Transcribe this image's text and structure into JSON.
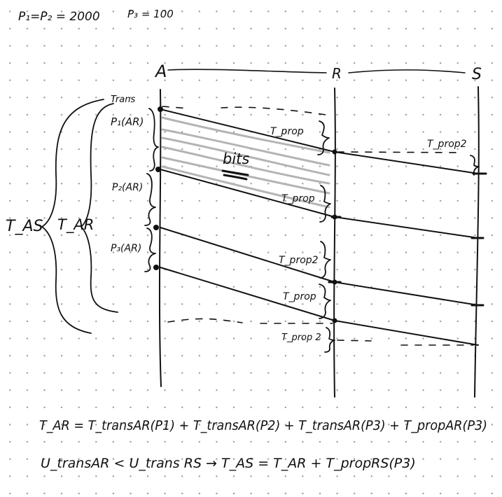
{
  "header": {
    "p1p2": "P₁=P₂ = 2000",
    "p3": "P₃ = 100"
  },
  "nodes": {
    "a": "A",
    "r": "R",
    "s": "S"
  },
  "labels": {
    "trans": "Trans",
    "p1": "P₁(AR)",
    "p2": "P₂(AR)",
    "p3": "P₃(AR)",
    "tas": "T_AS",
    "tar": "T_AR",
    "bits": "bits",
    "tprop_ar_1": "T_prop",
    "tprop_rs": "T_prop2",
    "tprop_ar_2": "T_prop",
    "tprop_2a": "T_prop2",
    "tprop_ar_3": "T_prop",
    "tprop_2b": "T_prop 2"
  },
  "equations": {
    "line1": "T_AR = T_transAR(P1) + T_transAR(P2) + T_transAR(P3) + T_propAR(P3)",
    "line2": "U_transAR < U_trans RS → T_AS = T_AR + T_propRS(P3)"
  }
}
